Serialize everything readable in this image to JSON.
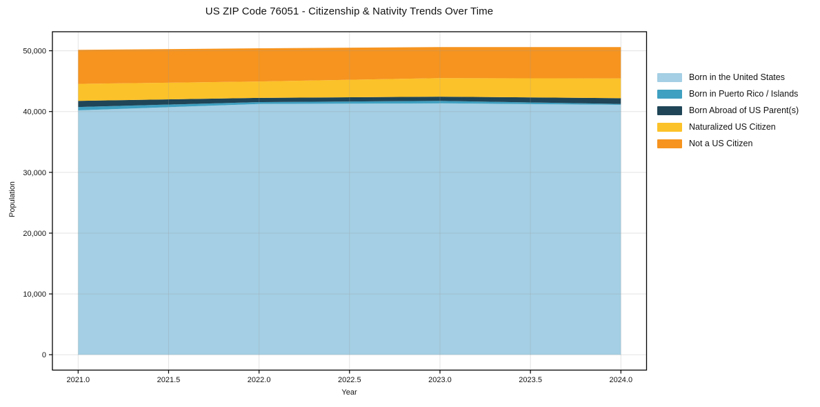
{
  "chart_data": {
    "type": "area",
    "stacked": true,
    "title": "US ZIP Code 76051 - Citizenship & Nativity Trends Over Time",
    "xlabel": "Year",
    "ylabel": "Population",
    "x": [
      2021,
      2022,
      2023,
      2024
    ],
    "series": [
      {
        "name": "Born in the United States",
        "color": "#A4CFE4",
        "values": [
          40200,
          41250,
          41350,
          41100
        ]
      },
      {
        "name": "Born in Puerto Rico / Islands",
        "color": "#3FA0C1",
        "values": [
          550,
          300,
          400,
          150
        ]
      },
      {
        "name": "Born Abroad of US Parent(s)",
        "color": "#1F4557",
        "values": [
          1000,
          700,
          700,
          950
        ]
      },
      {
        "name": "Naturalized US Citizen",
        "color": "#FCC229",
        "values": [
          2800,
          2700,
          3050,
          3250
        ]
      },
      {
        "name": "Not a US Citizen",
        "color": "#F6941F",
        "values": [
          5600,
          5450,
          5100,
          5150
        ]
      }
    ],
    "xticks": [
      2021.0,
      2021.5,
      2022.0,
      2022.5,
      2023.0,
      2023.5,
      2024.0
    ],
    "xtick_labels": [
      "2021.0",
      "2021.5",
      "2022.0",
      "2022.5",
      "2023.0",
      "2023.5",
      "2024.0"
    ],
    "yticks": [
      0,
      10000,
      20000,
      30000,
      40000,
      50000
    ],
    "ytick_labels": [
      "0",
      "10,000",
      "20,000",
      "30,000",
      "40,000",
      "50,000"
    ],
    "ylim": [
      0,
      50000
    ],
    "grid": true,
    "legend_position": "right",
    "colors": {
      "spine": "#000000",
      "gridline": "#999999",
      "background": "#ffffff",
      "text": "#111111"
    }
  }
}
